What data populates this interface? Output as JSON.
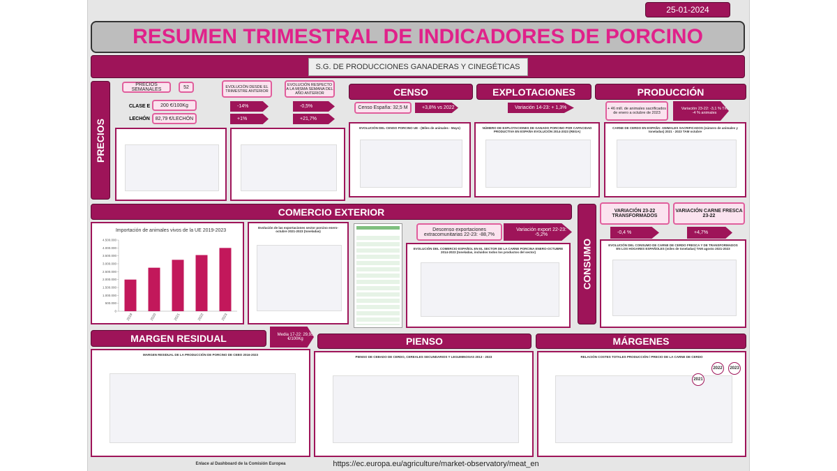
{
  "date": "25-01-2024",
  "title": "RESUMEN TRIMESTRAL DE INDICADORES DE PORCINO",
  "subtitle": "S.G. DE PRODUCCIONES GANADERAS Y CINEGÉTICAS",
  "precios": {
    "heading": "PRECIOS",
    "semanales_label": "PRECIOS SEMANALES",
    "semana": "52",
    "clase_e_label": "CLASE E",
    "clase_e_value": "200 €/100Kg",
    "lechon_label": "LECHÓN",
    "lechon_value": "82,79 €/LECHÓN",
    "trimestre_label": "EVOLUCIÓN DESDE EL TRIMESTRE ANTERIOR",
    "trimestre": [
      "-14%",
      "+1%"
    ],
    "anual_label": "EVOLUCIÓN RESPECTO A LA MISMA SEMANA DEL AÑO ANTERIOR",
    "anual": [
      "-0,5%",
      "+21,7%"
    ]
  },
  "censo": {
    "heading": "CENSO",
    "espana": "Censo España: 32,5 M",
    "variacion": "+3,8% vs 2022",
    "chart_title": "EVOLUCIÓN DEL CENSO PORCINO UE - (Miles de animales - Mayo)"
  },
  "explotaciones": {
    "heading": "EXPLOTACIONES",
    "variacion": "Variación 14-23: + 1,3%",
    "chart_title": "NÚMERO DE EXPLOTACIONES DE GANADO PORCINO POR CAPACIDAD PRODUCTIVA EN ESPAÑA EVOLUCIÓN 2014-2023 (REGA)"
  },
  "produccion": {
    "heading": "PRODUCCIÓN",
    "sacrificados": "+ 46 mill. de animales sacrificados de enero a octubre de 2023",
    "variacion": "Variación 23-22: -3,1 % Tm -4 % animales",
    "chart_title": "CARNE DE CERDO EN ESPAÑA: ANIMALES SACRIFICADOS (número de animales y toneladas) 2021 - 2023 TAM octubre"
  },
  "comercio": {
    "heading": "COMERCIO EXTERIOR",
    "export_title": "Evolución de las exportaciones sector porcino enero-octubre 2021-2023 (toneladas)",
    "descenso": "Descenso exportaciones extracomunitarias 22-23: -88,7%",
    "variacion": "Variación export 22-23: -5,2%",
    "comercio_title": "EVOLUCIÓN DEL COMERCIO ESPAÑOL EN EL SECTOR DE LA CARNE PORCINA ENERO-OCTUBRE 2014-2023 (toneladas, incluidos todos los productos del sector)"
  },
  "import_chart": {
    "type": "bar",
    "title": "Importación de animales vivos de la UE  2019-2023",
    "categories": [
      "2019",
      "2020",
      "2021",
      "2022",
      "2023"
    ],
    "values": [
      2000000,
      2750000,
      3250000,
      3550000,
      4000000
    ],
    "color": "#c2185b",
    "ylim": [
      0,
      4500000
    ],
    "yticks": [
      0,
      {
        "value": 500000,
        "label": "500.000"
      },
      {
        "value": 1000000,
        "label": "1.000.000"
      },
      {
        "value": 1500000,
        "label": "1.500.000"
      },
      {
        "value": 2000000,
        "label": "2.000.000"
      },
      {
        "value": 2500000,
        "label": "2.500.000"
      },
      {
        "value": 3000000,
        "label": "3.000.000"
      },
      {
        "value": 3500000,
        "label": "3.500.000"
      },
      {
        "value": 4000000,
        "label": "4.000.000"
      },
      {
        "value": 4500000,
        "label": "4.500.000"
      }
    ]
  },
  "consumo": {
    "heading": "CONSUMO",
    "transformados_label": "VARIACIÓN 23-22 TRANSFORMADOS",
    "transformados": "-0,4 %",
    "fresca_label": "VARIACIÓN CARNE FRESCA 23-22",
    "fresca": "+4,7%",
    "chart_title": "EVOLUCIÓN DEL CONSUMO DE CARNE DE CERDO FRESCA Y DE TRANSFORMADOS EN LOS HOGARES ESPAÑOLES (miles de toneladas) TAM agosto 2021-2023"
  },
  "margen": {
    "heading": "MARGEN RESIDUAL",
    "media": "Media 17-22: 29,95 €/100Kg",
    "chart_title": "MARGEN RESIDUAL DE LA PRODUCCIÓN DE PORCINO DE CEBO 2016-2023"
  },
  "pienso": {
    "heading": "PIENSO",
    "chart_title": "PIENSO DE CEBADO DE CERDO, CEREALES SECUNDARIOS Y LEGUMINOSAS 2013 - 2023"
  },
  "margenes": {
    "heading": "MÁRGENES",
    "chart_title": "RELACIÓN COSTES TOTALES PRODUCCIÓN / PRECIO DE LA CARNE DE CERDO",
    "annotations": [
      "2021",
      "2022",
      "2023"
    ]
  },
  "footer": {
    "link_label": "Enlace al Dashboard de la Comisión Europea",
    "url": "https://ec.europa.eu/agriculture/market-observatory/meat_en"
  }
}
